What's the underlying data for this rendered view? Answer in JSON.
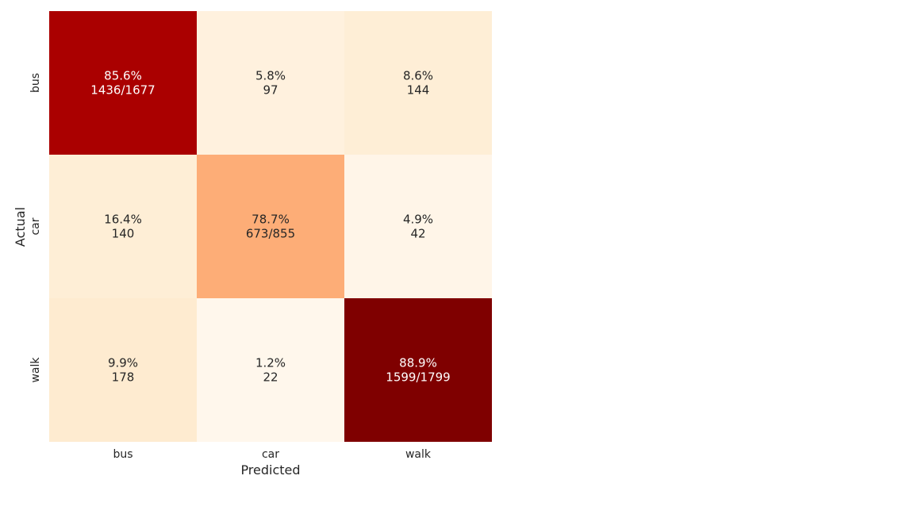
{
  "chart_data": {
    "type": "heatmap",
    "title": "",
    "xlabel": "Predicted",
    "ylabel": "Actual",
    "x_categories": [
      "bus",
      "car",
      "walk"
    ],
    "y_categories": [
      "bus",
      "car",
      "walk"
    ],
    "values": [
      [
        1436,
        97,
        144
      ],
      [
        140,
        673,
        42
      ],
      [
        178,
        22,
        1599
      ]
    ],
    "percentages": [
      [
        85.6,
        5.8,
        8.6
      ],
      [
        16.4,
        78.7,
        4.9
      ],
      [
        9.9,
        1.2,
        88.9
      ]
    ],
    "row_totals": [
      1677,
      855,
      1799
    ],
    "cell_labels": [
      [
        "85.6%\n1436/1677",
        "5.8%\n97",
        "8.6%\n144"
      ],
      [
        "16.4%\n140",
        "78.7%\n673/855",
        "4.9%\n42"
      ],
      [
        "9.9%\n178",
        "1.2%\n22",
        "88.9%\n1599/1799"
      ]
    ],
    "colormap": "OrRd",
    "colorbar": false,
    "grid": false,
    "text_color_dark": "#262626",
    "text_color_light": "#ffffff"
  }
}
